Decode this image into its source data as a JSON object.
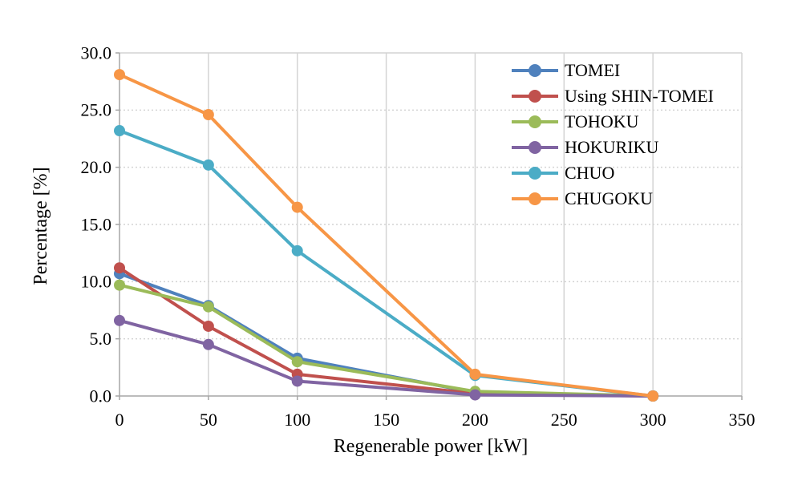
{
  "chart_data": {
    "type": "line",
    "title": "",
    "xlabel": "Regenerable power [kW]",
    "ylabel": "Percentage [%]",
    "x": [
      0,
      50,
      100,
      200,
      300
    ],
    "xlim": [
      0,
      350
    ],
    "ylim": [
      0,
      30
    ],
    "x_ticks": [
      0,
      50,
      100,
      150,
      200,
      250,
      300,
      350
    ],
    "y_ticks": [
      0,
      5,
      10,
      15,
      20,
      25,
      30
    ],
    "y_tick_decimals": 1,
    "grid": true,
    "legend_position": "top-right-inside",
    "marker": "circle",
    "series": [
      {
        "name": "TOMEI",
        "color": "#4F81BD",
        "values": [
          10.7,
          7.9,
          3.3,
          0.3,
          0.0
        ]
      },
      {
        "name": "Using SHIN-TOMEI",
        "color": "#C0504D",
        "values": [
          11.2,
          6.1,
          1.9,
          0.2,
          0.0
        ]
      },
      {
        "name": "TOHOKU",
        "color": "#9BBB59",
        "values": [
          9.7,
          7.8,
          3.0,
          0.4,
          0.0
        ]
      },
      {
        "name": "HOKURIKU",
        "color": "#8064A2",
        "values": [
          6.6,
          4.5,
          1.3,
          0.1,
          0.0
        ]
      },
      {
        "name": "CHUO",
        "color": "#4BACC6",
        "values": [
          23.2,
          20.2,
          12.7,
          1.8,
          0.0
        ]
      },
      {
        "name": "CHUGOKU",
        "color": "#F79646",
        "values": [
          28.1,
          24.6,
          16.5,
          1.9,
          0.0
        ]
      }
    ],
    "style": {
      "gridline_color": "#d4d4d4",
      "axis_color": "#a6a6a6",
      "text_color": "#000000"
    }
  }
}
